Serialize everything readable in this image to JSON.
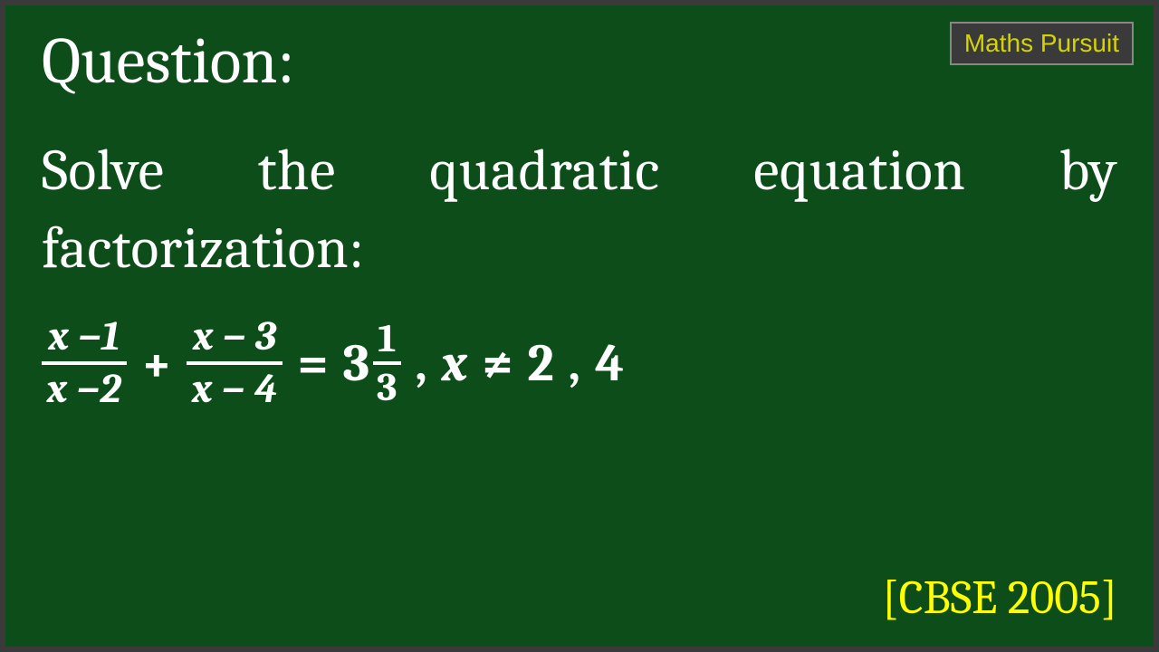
{
  "badge": {
    "text": "Maths Pursuit"
  },
  "heading": "Question:",
  "prompt": "Solve the quadratic equation by factorization:",
  "equation": {
    "frac1": {
      "num": "x −1",
      "den": "x −2"
    },
    "plus": "+",
    "frac2": {
      "num": "x − 3",
      "den": "x − 4"
    },
    "equals": "=",
    "mixed": {
      "whole": "3",
      "num": "1",
      "den": "3"
    },
    "comma1": ",",
    "var": "x",
    "neq": "≠",
    "val1": "2",
    "comma2": ",",
    "val2": "4"
  },
  "source": "[CBSE 2005]",
  "colors": {
    "background": "#0d4d1a",
    "border": "#3a3a3a",
    "text": "#ffffff",
    "source": "#ffff00",
    "badge_bg": "#3a3a3a",
    "badge_border": "#888888",
    "badge_text": "#d4d400"
  }
}
